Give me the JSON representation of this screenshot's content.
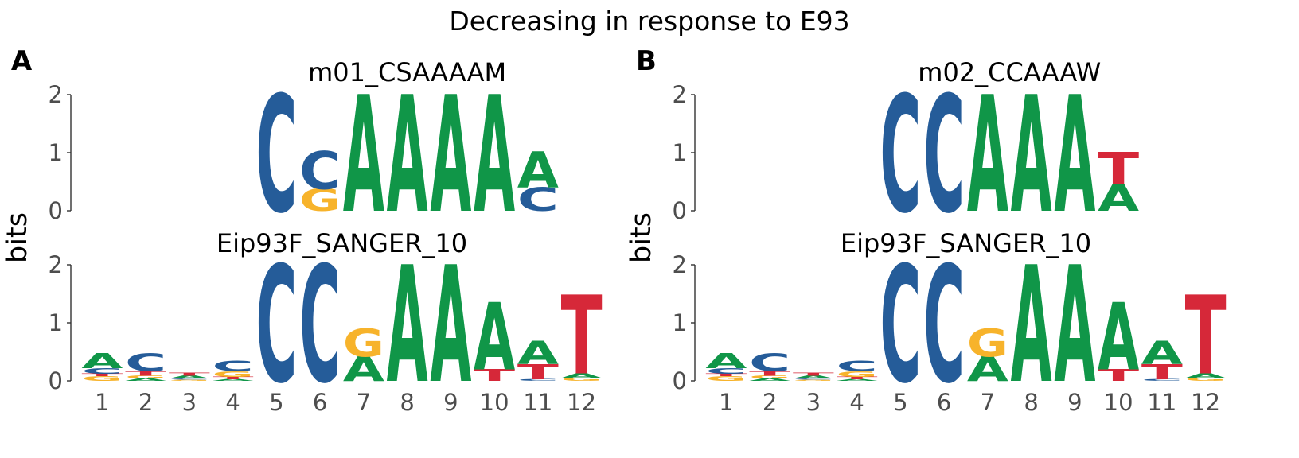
{
  "title": "Decreasing in response to E93",
  "colors": {
    "A": "#109648",
    "C": "#255C99",
    "G": "#F7B32B",
    "T": "#D62839"
  },
  "chart_data": [
    {
      "type": "sequence-logo",
      "panel": "A",
      "ylabel": "bits",
      "ylim": [
        0,
        2
      ],
      "yticks": [
        "0",
        "1",
        "2"
      ],
      "xticks": [
        "1",
        "2",
        "3",
        "4",
        "5",
        "6",
        "7",
        "8",
        "9",
        "10",
        "11",
        "12"
      ],
      "logos": [
        {
          "title": "m01_CSAAAAM",
          "start": 5,
          "columns": [
            [
              {
                "base": "C",
                "bits": 2.0
              }
            ],
            [
              {
                "base": "G",
                "bits": 0.38
              },
              {
                "base": "C",
                "bits": 0.65
              }
            ],
            [
              {
                "base": "A",
                "bits": 2.0
              }
            ],
            [
              {
                "base": "A",
                "bits": 2.0
              }
            ],
            [
              {
                "base": "A",
                "bits": 2.0
              }
            ],
            [
              {
                "base": "A",
                "bits": 2.0
              }
            ],
            [
              {
                "base": "C",
                "bits": 0.4
              },
              {
                "base": "A",
                "bits": 0.62
              }
            ]
          ]
        },
        {
          "title": "Eip93F_SANGER_10",
          "start": 1,
          "columns": [
            [
              {
                "base": "G",
                "bits": 0.08
              },
              {
                "base": "T",
                "bits": 0.04
              },
              {
                "base": "C",
                "bits": 0.1
              },
              {
                "base": "A",
                "bits": 0.26
              }
            ],
            [
              {
                "base": "A",
                "bits": 0.04
              },
              {
                "base": "G",
                "bits": 0.05
              },
              {
                "base": "T",
                "bits": 0.08
              },
              {
                "base": "C",
                "bits": 0.3
              }
            ],
            [
              {
                "base": "G",
                "bits": 0.02
              },
              {
                "base": "C",
                "bits": 0.02
              },
              {
                "base": "A",
                "bits": 0.05
              },
              {
                "base": "T",
                "bits": 0.05
              }
            ],
            [
              {
                "base": "A",
                "bits": 0.03
              },
              {
                "base": "T",
                "bits": 0.04
              },
              {
                "base": "G",
                "bits": 0.1
              },
              {
                "base": "C",
                "bits": 0.18
              }
            ],
            [
              {
                "base": "C",
                "bits": 2.0
              }
            ],
            [
              {
                "base": "C",
                "bits": 2.0
              }
            ],
            [
              {
                "base": "A",
                "bits": 0.42
              },
              {
                "base": "G",
                "bits": 0.48
              }
            ],
            [
              {
                "base": "A",
                "bits": 2.0
              }
            ],
            [
              {
                "base": "A",
                "bits": 2.0
              }
            ],
            [
              {
                "base": "T",
                "bits": 0.2
              },
              {
                "base": "A",
                "bits": 1.15
              }
            ],
            [
              {
                "base": "C",
                "bits": 0.03
              },
              {
                "base": "T",
                "bits": 0.26
              },
              {
                "base": "A",
                "bits": 0.4
              }
            ],
            [
              {
                "base": "G",
                "bits": 0.05
              },
              {
                "base": "A",
                "bits": 0.08
              },
              {
                "base": "T",
                "bits": 1.35
              }
            ]
          ]
        }
      ]
    },
    {
      "type": "sequence-logo",
      "panel": "B",
      "ylabel": "bits",
      "ylim": [
        0,
        2
      ],
      "yticks": [
        "0",
        "1",
        "2"
      ],
      "xticks": [
        "1",
        "2",
        "3",
        "4",
        "5",
        "6",
        "7",
        "8",
        "9",
        "10",
        "11",
        "12"
      ],
      "logos": [
        {
          "title": "m02_CCAAAW",
          "start": 5,
          "columns": [
            [
              {
                "base": "C",
                "bits": 2.0
              }
            ],
            [
              {
                "base": "C",
                "bits": 2.0
              }
            ],
            [
              {
                "base": "A",
                "bits": 2.0
              }
            ],
            [
              {
                "base": "A",
                "bits": 2.0
              }
            ],
            [
              {
                "base": "A",
                "bits": 2.0
              }
            ],
            [
              {
                "base": "A",
                "bits": 0.45
              },
              {
                "base": "T",
                "bits": 0.56
              }
            ]
          ]
        },
        {
          "title": "Eip93F_SANGER_10",
          "start": 1,
          "columns": [
            [
              {
                "base": "G",
                "bits": 0.08
              },
              {
                "base": "T",
                "bits": 0.04
              },
              {
                "base": "C",
                "bits": 0.1
              },
              {
                "base": "A",
                "bits": 0.26
              }
            ],
            [
              {
                "base": "A",
                "bits": 0.04
              },
              {
                "base": "G",
                "bits": 0.05
              },
              {
                "base": "T",
                "bits": 0.08
              },
              {
                "base": "C",
                "bits": 0.3
              }
            ],
            [
              {
                "base": "G",
                "bits": 0.02
              },
              {
                "base": "C",
                "bits": 0.02
              },
              {
                "base": "A",
                "bits": 0.05
              },
              {
                "base": "T",
                "bits": 0.05
              }
            ],
            [
              {
                "base": "A",
                "bits": 0.03
              },
              {
                "base": "T",
                "bits": 0.04
              },
              {
                "base": "G",
                "bits": 0.1
              },
              {
                "base": "C",
                "bits": 0.18
              }
            ],
            [
              {
                "base": "C",
                "bits": 2.0
              }
            ],
            [
              {
                "base": "C",
                "bits": 2.0
              }
            ],
            [
              {
                "base": "A",
                "bits": 0.42
              },
              {
                "base": "G",
                "bits": 0.48
              }
            ],
            [
              {
                "base": "A",
                "bits": 2.0
              }
            ],
            [
              {
                "base": "A",
                "bits": 2.0
              }
            ],
            [
              {
                "base": "T",
                "bits": 0.2
              },
              {
                "base": "A",
                "bits": 1.15
              }
            ],
            [
              {
                "base": "C",
                "bits": 0.03
              },
              {
                "base": "T",
                "bits": 0.26
              },
              {
                "base": "A",
                "bits": 0.4
              }
            ],
            [
              {
                "base": "G",
                "bits": 0.05
              },
              {
                "base": "A",
                "bits": 0.08
              },
              {
                "base": "T",
                "bits": 1.35
              }
            ]
          ]
        }
      ]
    }
  ]
}
